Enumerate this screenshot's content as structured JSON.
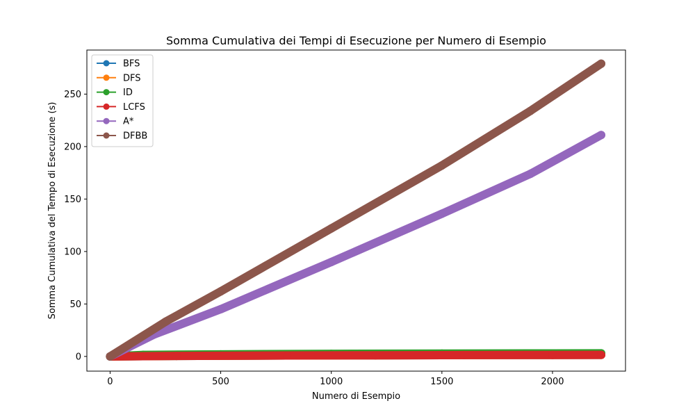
{
  "chart_data": {
    "type": "line",
    "title": "Somma Cumulativa dei Tempi di Esecuzione per Numero di Esempio",
    "xlabel": "Numero di Esempio",
    "ylabel": "Somma Cumulativa del Tempo di Esecuzione (s)",
    "xlim": [
      -105,
      2330
    ],
    "ylim": [
      -14,
      292
    ],
    "xticks": [
      0,
      500,
      1000,
      1500,
      2000
    ],
    "yticks": [
      0,
      50,
      100,
      150,
      200,
      250
    ],
    "grid": false,
    "legend_position": "top-left",
    "marker": "circle",
    "series": [
      {
        "name": "BFS",
        "color": "#1f77b4",
        "points": [
          [
            0,
            0
          ],
          [
            300,
            0.5
          ],
          [
            800,
            0.9
          ],
          [
            1200,
            1.1
          ],
          [
            1600,
            1.3
          ],
          [
            2000,
            1.4
          ],
          [
            2220,
            1.5
          ]
        ]
      },
      {
        "name": "DFS",
        "color": "#ff7f0e",
        "points": [
          [
            0,
            0
          ],
          [
            300,
            0.5
          ],
          [
            800,
            0.9
          ],
          [
            1200,
            1.1
          ],
          [
            1600,
            1.3
          ],
          [
            2000,
            1.4
          ],
          [
            2220,
            1.5
          ]
        ]
      },
      {
        "name": "ID",
        "color": "#2ca02c",
        "points": [
          [
            0,
            0
          ],
          [
            150,
            1.5
          ],
          [
            500,
            2
          ],
          [
            1000,
            2.5
          ],
          [
            1500,
            2.7
          ],
          [
            2000,
            2.9
          ],
          [
            2220,
            3
          ]
        ]
      },
      {
        "name": "LCFS",
        "color": "#d62728",
        "points": [
          [
            0,
            0
          ],
          [
            300,
            0.5
          ],
          [
            800,
            0.9
          ],
          [
            1200,
            1.1
          ],
          [
            1600,
            1.3
          ],
          [
            2000,
            1.4
          ],
          [
            2220,
            1.5
          ]
        ]
      },
      {
        "name": "A*",
        "color": "#9467bd",
        "points": [
          [
            0,
            0
          ],
          [
            200,
            21
          ],
          [
            500,
            45
          ],
          [
            1000,
            90
          ],
          [
            1500,
            136
          ],
          [
            1900,
            174
          ],
          [
            2220,
            211
          ]
        ]
      },
      {
        "name": "DFBB",
        "color": "#8c564b",
        "points": [
          [
            0,
            0
          ],
          [
            250,
            33
          ],
          [
            500,
            62
          ],
          [
            1000,
            122
          ],
          [
            1500,
            182
          ],
          [
            1900,
            234
          ],
          [
            2220,
            279
          ]
        ]
      }
    ]
  }
}
